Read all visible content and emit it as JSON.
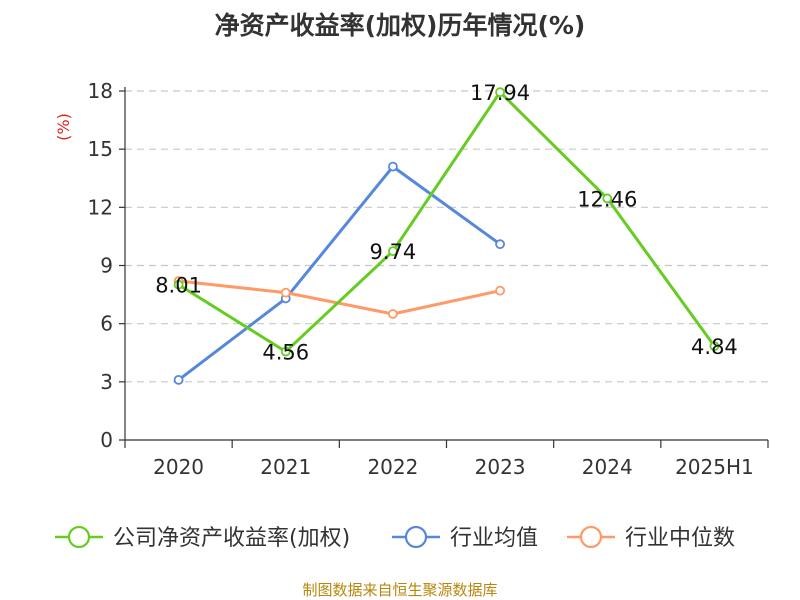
{
  "chart_data": {
    "type": "line",
    "title": "净资产收益率(加权)历年情况(%)",
    "ylabel": "(%)",
    "categories": [
      "2020",
      "2021",
      "2022",
      "2023",
      "2024",
      "2025H1"
    ],
    "y_ticks": [
      "0",
      "3",
      "6",
      "9",
      "12",
      "15",
      "18"
    ],
    "ylim": [
      0,
      18
    ],
    "grid": true,
    "legend_position": "bottom",
    "series": [
      {
        "name": "公司净资产收益率(加权)",
        "color": "#66cc22",
        "values": [
          8.01,
          4.56,
          9.74,
          17.94,
          12.46,
          4.84
        ],
        "labels": [
          "8.01",
          "4.56",
          "9.74",
          "17.94",
          "12.46",
          "4.84"
        ]
      },
      {
        "name": "行业均值",
        "color": "#5588dd",
        "values": [
          3.1,
          7.3,
          14.1,
          10.1,
          null,
          null
        ]
      },
      {
        "name": "行业中位数",
        "color": "#ff9966",
        "values": [
          8.2,
          7.6,
          6.5,
          7.7,
          null,
          null
        ]
      }
    ]
  },
  "source": "制图数据来自恒生聚源数据库"
}
